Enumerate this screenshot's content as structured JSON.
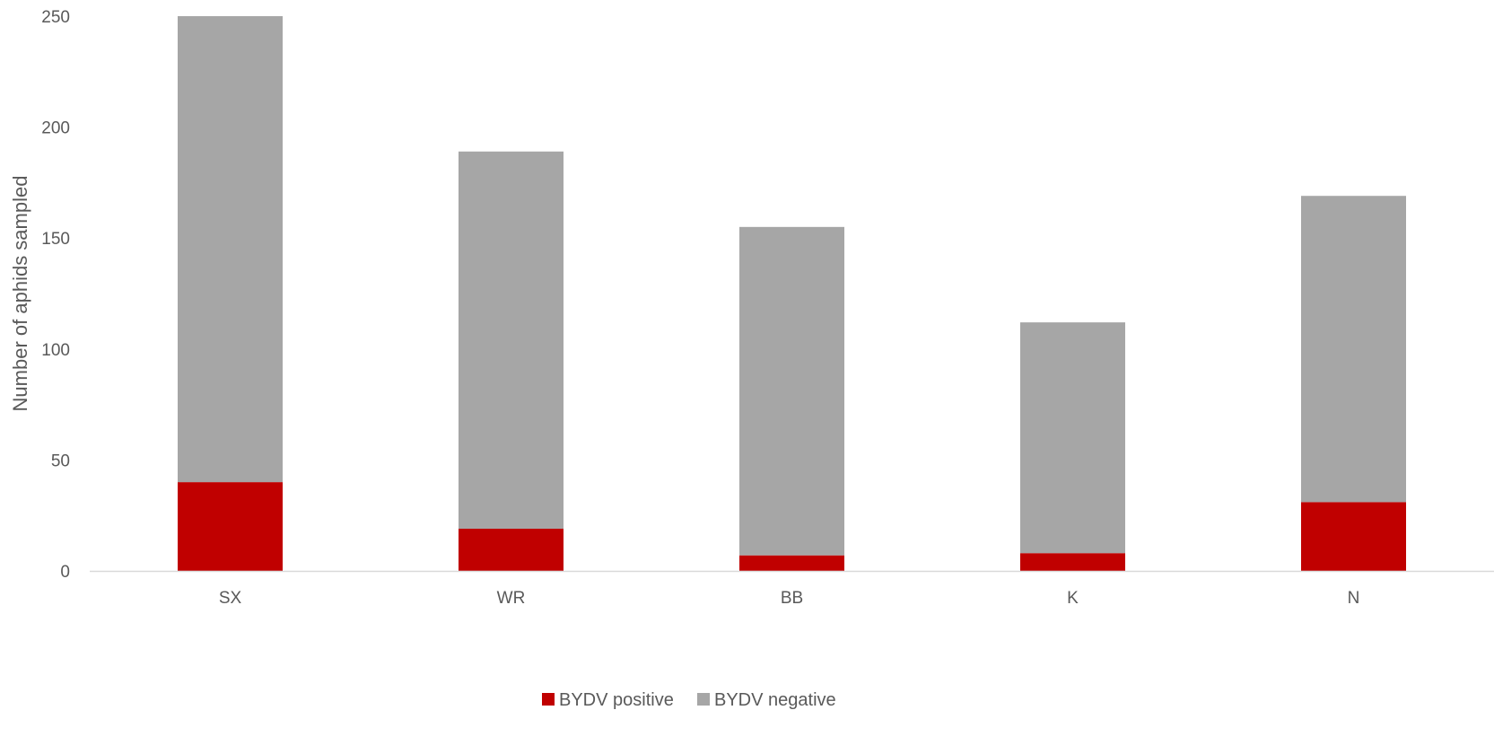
{
  "chart_data": {
    "type": "bar",
    "stacked": true,
    "categories": [
      "SX",
      "WR",
      "BB",
      "K",
      "N"
    ],
    "series": [
      {
        "name": "BYDV positive",
        "values": [
          40,
          19,
          7,
          8,
          31
        ],
        "color": "#C00000"
      },
      {
        "name": "BYDV negative",
        "values": [
          210,
          170,
          148,
          104,
          138
        ],
        "color": "#A6A6A6"
      }
    ],
    "ylabel": "Number of aphids sampled",
    "xlabel": "",
    "ylim": [
      0,
      250
    ],
    "yticks": [
      "0",
      "50",
      "100",
      "150",
      "200",
      "250"
    ],
    "grid": false,
    "legend_position": "bottom",
    "axis_color": "#D9D9D9"
  }
}
